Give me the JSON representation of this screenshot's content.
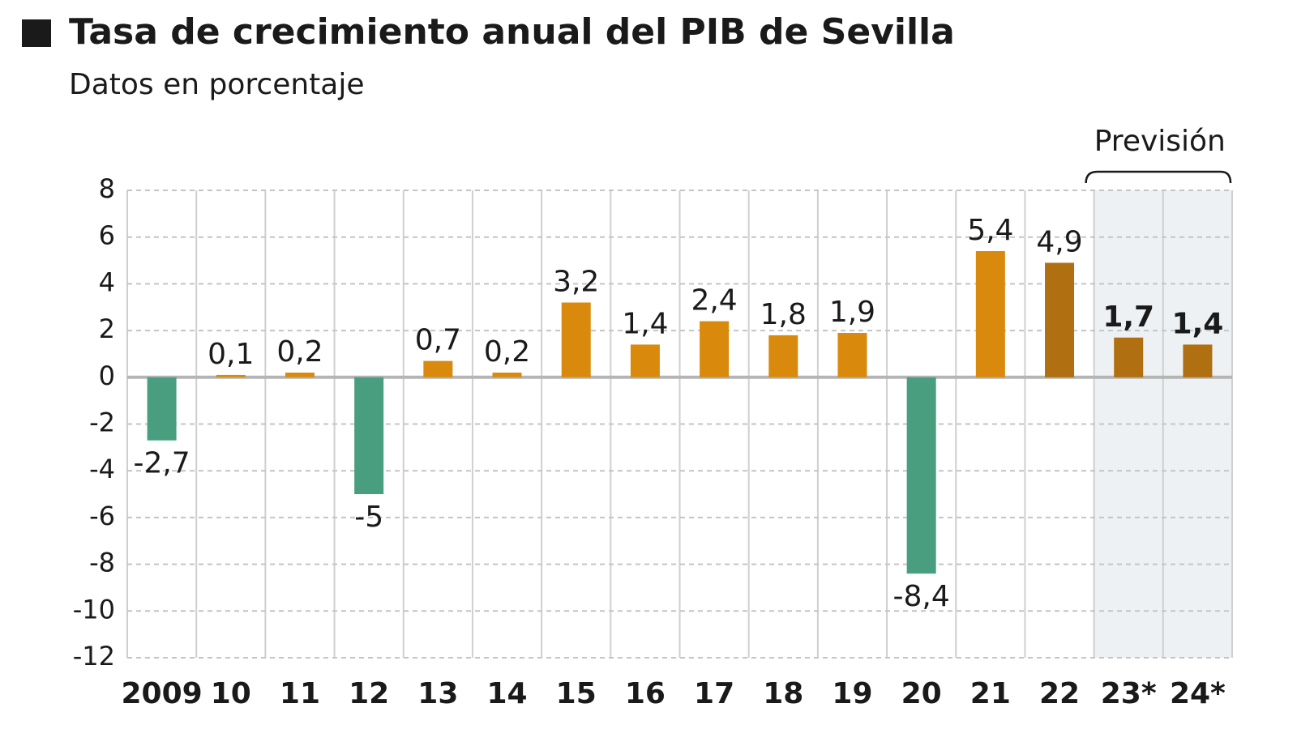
{
  "chart_data": {
    "type": "bar",
    "title": "Tasa de crecimiento anual del PIB de Sevilla",
    "subtitle": "Datos en porcentaje",
    "annotation": "Previsión",
    "categories": [
      "2009",
      "10",
      "11",
      "12",
      "13",
      "14",
      "15",
      "16",
      "17",
      "18",
      "19",
      "20",
      "21",
      "22",
      "23*",
      "24*"
    ],
    "values": [
      -2.7,
      0.1,
      0.2,
      -5,
      0.7,
      0.2,
      3.2,
      1.4,
      2.4,
      1.8,
      1.9,
      -8.4,
      5.4,
      4.9,
      1.7,
      1.4
    ],
    "value_labels": [
      "-2,7",
      "0,1",
      "0,2",
      "-5",
      "0,7",
      "0,2",
      "3,2",
      "1,4",
      "2,4",
      "1,8",
      "1,9",
      "-8,4",
      "5,4",
      "4,9",
      "1,7",
      "1,4"
    ],
    "colors": [
      "#4a9e80",
      "#d98a0c",
      "#d98a0c",
      "#4a9e80",
      "#d98a0c",
      "#d98a0c",
      "#d98a0c",
      "#d98a0c",
      "#d98a0c",
      "#d98a0c",
      "#d98a0c",
      "#4a9e80",
      "#d98a0c",
      "#b06f10",
      "#b06f10",
      "#b06f10"
    ],
    "ylim": [
      -12,
      8
    ],
    "yticks": [
      -12,
      -10,
      -8,
      -6,
      -4,
      -2,
      0,
      2,
      4,
      6,
      8
    ],
    "grid": true
  }
}
